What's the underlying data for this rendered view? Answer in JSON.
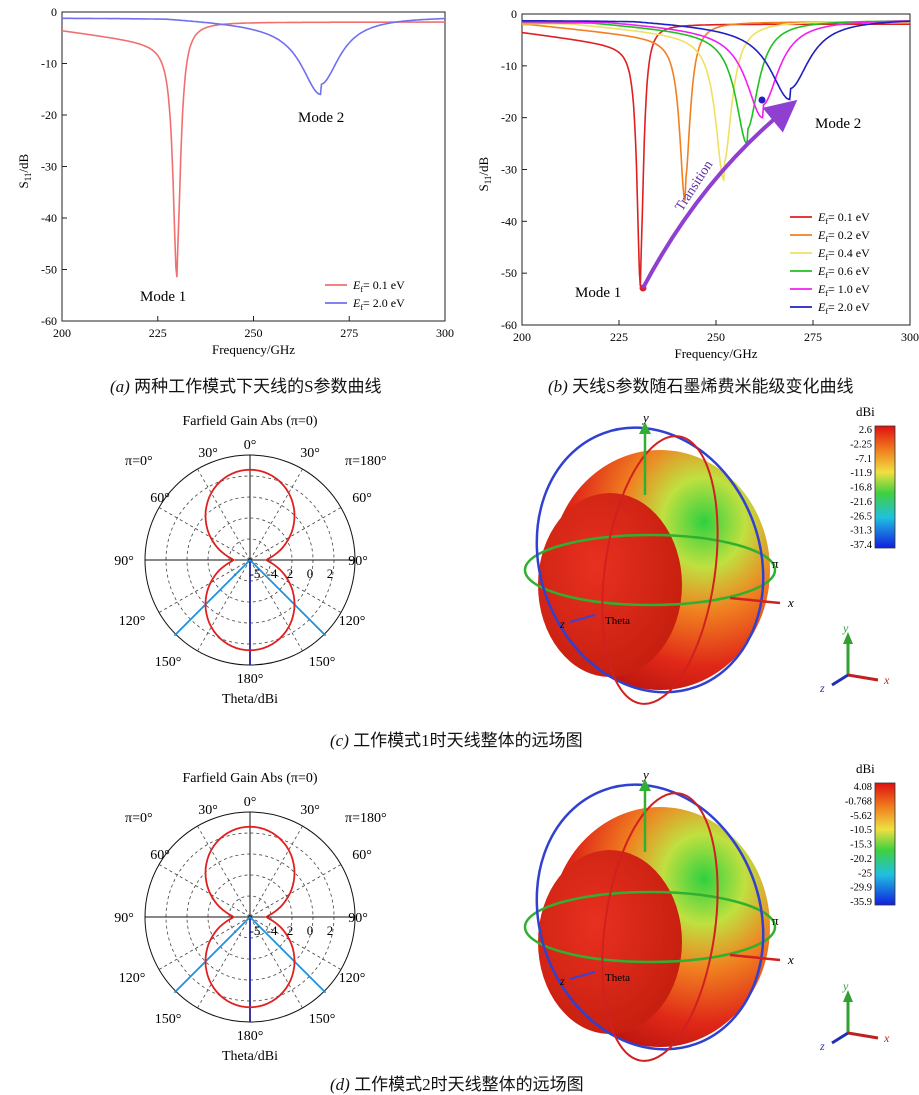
{
  "panel_a": {
    "caption_label": "(a)",
    "caption_text": "两种工作模式下天线的S参数曲线",
    "annotations": [
      "Mode 1",
      "Mode 2"
    ],
    "legend": [
      {
        "label": "E",
        "sub": "f",
        "value": "= 0.1 eV",
        "color": "#f07070"
      },
      {
        "label": "E",
        "sub": "f",
        "value": "= 2.0 eV",
        "color": "#7070f0"
      }
    ]
  },
  "panel_b": {
    "caption_label": "(b)",
    "caption_text": "天线S参数随石墨烯费米能级变化曲线",
    "annotations": [
      "Mode 1",
      "Mode 2",
      "Transition"
    ],
    "legend": [
      {
        "label": "E",
        "sub": "f",
        "value": "= 0.1 eV",
        "color": "#e02020"
      },
      {
        "label": "E",
        "sub": "f",
        "value": "= 0.2 eV",
        "color": "#f08020"
      },
      {
        "label": "E",
        "sub": "f",
        "value": "= 0.4 eV",
        "color": "#f0e060"
      },
      {
        "label": "E",
        "sub": "f",
        "value": "= 0.6 eV",
        "color": "#20c020"
      },
      {
        "label": "E",
        "sub": "f",
        "value": "= 1.0 eV",
        "color": "#f020f0"
      },
      {
        "label": "E",
        "sub": "f",
        "value": "= 2.0 eV",
        "color": "#2020c0"
      }
    ]
  },
  "panel_c": {
    "caption_label": "(c)",
    "caption_text": "工作模式1时天线整体的远场图",
    "polar_title": "Farfield Gain Abs (π=0)",
    "polar_xlabel": "Theta/dBi",
    "left_phi": "π=0°",
    "right_phi": "π=180°",
    "angle_labels": [
      "0°",
      "30°",
      "30°",
      "60°",
      "60°",
      "90°",
      "90°",
      "120°",
      "120°",
      "150°",
      "150°",
      "180°"
    ],
    "radial_labels": [
      "-5",
      "-4",
      "2",
      "0",
      "2"
    ],
    "colorbar_title": "dBi",
    "colorbar_ticks": [
      "2.6",
      "-2.25",
      "-7.1",
      "-11.9",
      "-16.8",
      "-21.6",
      "-26.5",
      "-31.3",
      "-37.4"
    ],
    "axis_labels": {
      "x": "x",
      "y": "y",
      "z": "z",
      "theta": "Theta",
      "pi": "π"
    }
  },
  "panel_d": {
    "caption_label": "(d)",
    "caption_text": "工作模式2时天线整体的远场图",
    "polar_title": "Farfield Gain Abs (π=0)",
    "polar_xlabel": "Theta/dBi",
    "left_phi": "π=0°",
    "right_phi": "π=180°",
    "angle_labels": [
      "0°",
      "30°",
      "30°",
      "60°",
      "60°",
      "90°",
      "90°",
      "120°",
      "120°",
      "150°",
      "150°",
      "180°"
    ],
    "radial_labels": [
      "-5",
      "-4",
      "2",
      "0",
      "2"
    ],
    "colorbar_title": "dBi",
    "colorbar_ticks": [
      "4.08",
      "-0.768",
      "-5.62",
      "-10.5",
      "-15.3",
      "-20.2",
      "-25",
      "-29.9",
      "-35.9"
    ],
    "axis_labels": {
      "x": "x",
      "y": "y",
      "z": "z",
      "theta": "Theta",
      "pi": "π"
    }
  },
  "chart_data": [
    {
      "type": "line",
      "xlabel": "Frequency/GHz",
      "ylabel": "S11/dB",
      "xlim": [
        200,
        300
      ],
      "ylim": [
        -60,
        0
      ],
      "xticks": [
        200,
        225,
        250,
        275,
        300
      ],
      "yticks": [
        0,
        -10,
        -20,
        -30,
        -40,
        -50,
        -60
      ],
      "series": [
        {
          "name": "Ef= 0.1 eV",
          "f0": 230,
          "depth": -51.5,
          "base": -6.5,
          "color": "#f07070"
        },
        {
          "name": "Ef= 2.0 eV",
          "f0": 267.5,
          "depth": -16,
          "base": -2.8,
          "color": "#7070f0"
        }
      ]
    },
    {
      "type": "line",
      "xlabel": "Frequency/GHz",
      "ylabel": "S11/dB",
      "xlim": [
        200,
        300
      ],
      "ylim": [
        -60,
        0
      ],
      "xticks": [
        200,
        225,
        250,
        275,
        300
      ],
      "yticks": [
        0,
        -10,
        -20,
        -30,
        -40,
        -50,
        -60
      ],
      "series": [
        {
          "name": "Ef= 0.1 eV",
          "f0": 230.5,
          "depth": -52.5,
          "base": -6.5,
          "color": "#e02020"
        },
        {
          "name": "Ef= 0.2 eV",
          "f0": 242,
          "depth": -36,
          "base": -5,
          "color": "#f08020"
        },
        {
          "name": "Ef= 0.4 eV",
          "f0": 252,
          "depth": -32,
          "base": -4.5,
          "color": "#f0e060"
        },
        {
          "name": "Ef= 0.6 eV",
          "f0": 258,
          "depth": -25,
          "base": -4,
          "color": "#20c020"
        },
        {
          "name": "Ef= 1.0 eV",
          "f0": 262,
          "depth": -20,
          "base": -3.5,
          "color": "#f020f0"
        },
        {
          "name": "Ef= 2.0 eV",
          "f0": 269,
          "depth": -16.5,
          "base": -3,
          "color": "#2020c0"
        }
      ]
    },
    {
      "type": "polar",
      "title": "Farfield Gain Abs (π=0)",
      "xlabel": "Theta/dBi",
      "pattern": "figure-eight",
      "main_lobe_directions_deg": [
        0,
        180
      ]
    },
    {
      "type": "polar",
      "title": "Farfield Gain Abs (π=0)",
      "xlabel": "Theta/dBi",
      "pattern": "figure-eight",
      "main_lobe_directions_deg": [
        0,
        180
      ]
    }
  ]
}
